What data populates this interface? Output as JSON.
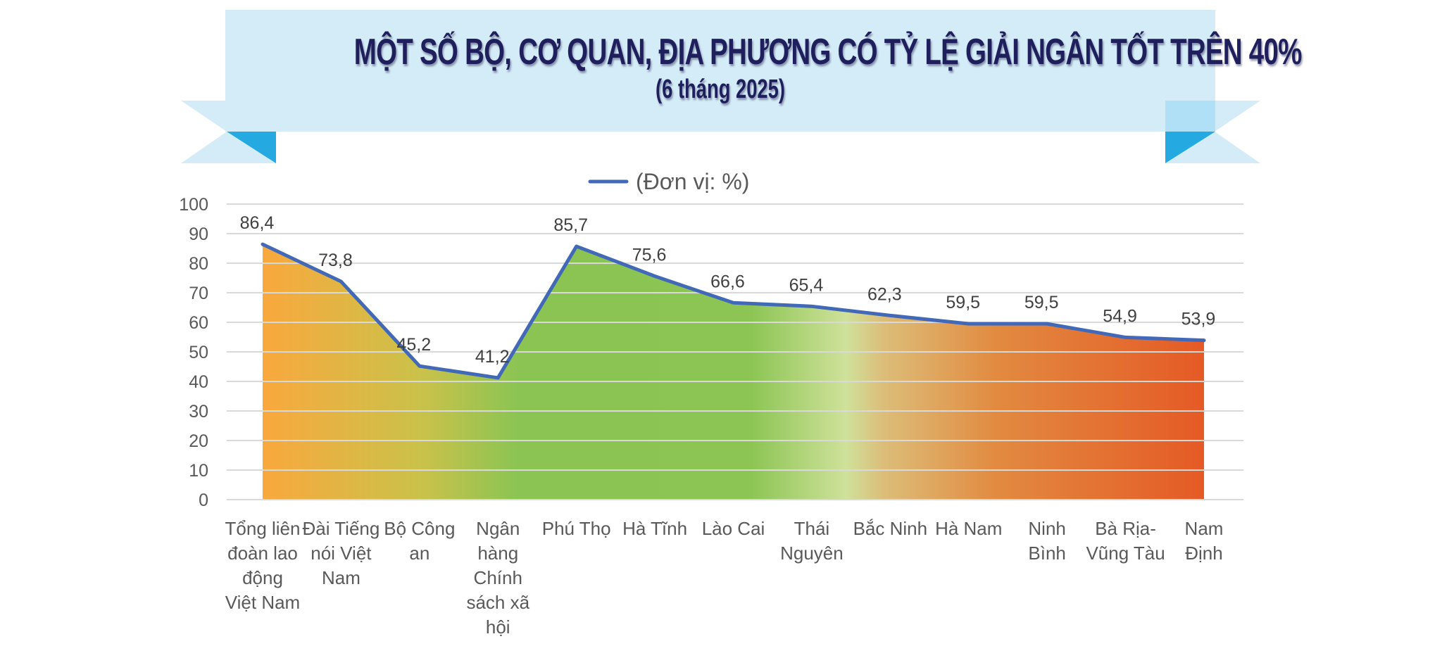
{
  "header": {
    "title": "MỘT SỐ BỘ, CƠ QUAN, ĐỊA PHƯƠNG CÓ TỶ LỆ GIẢI NGÂN TỐT TRÊN 40%",
    "subtitle": "(6 tháng 2025)"
  },
  "colors": {
    "banner_bg": "#d4ecf7",
    "ribbon_light": "#b0e0f6",
    "ribbon_dark": "#25a9e1",
    "title_text": "#1f1f5e",
    "line": "#4169b8",
    "gridline": "#d9d9d9",
    "axis_text": "#595959",
    "gradient_stops": [
      "#f9a83d",
      "#c9c24a",
      "#8cc453",
      "#8cc453",
      "#cfe19a",
      "#e09448",
      "#e55a26"
    ]
  },
  "legend": {
    "label": "(Đơn vị: %)",
    "icon": "line-swatch-icon"
  },
  "chart_data": {
    "type": "area",
    "title": "MỘT SỐ BỘ, CƠ QUAN, ĐỊA PHƯƠNG CÓ TỶ LỆ GIẢI NGÂN TỐT TRÊN 40%",
    "subtitle": "(6 tháng 2025)",
    "xlabel": "",
    "ylabel": "",
    "ylim": [
      0,
      100
    ],
    "yticks": [
      0,
      10,
      20,
      30,
      40,
      50,
      60,
      70,
      80,
      90,
      100
    ],
    "grid": true,
    "legend_position": "top",
    "categories": [
      "Tổng liên đoàn lao động Việt Nam",
      "Đài Tiếng nói Việt Nam",
      "Bộ Công an",
      "Ngân hàng Chính sách xã hội",
      "Phú Thọ",
      "Hà Tĩnh",
      "Lào Cai",
      "Thái Nguyên",
      "Bắc Ninh",
      "Hà Nam",
      "Ninh Bình",
      "Bà Rịa-Vũng Tàu",
      "Nam Định"
    ],
    "category_lines": [
      [
        "Tổng liên",
        "đoàn lao",
        "động",
        "Việt Nam"
      ],
      [
        "Đài Tiếng",
        "nói Việt",
        "Nam"
      ],
      [
        "Bộ Công",
        "an"
      ],
      [
        "Ngân",
        "hàng",
        "Chính",
        "sách xã",
        "hội"
      ],
      [
        "Phú Thọ"
      ],
      [
        "Hà Tĩnh"
      ],
      [
        "Lào Cai"
      ],
      [
        "Thái",
        "Nguyên"
      ],
      [
        "Bắc Ninh"
      ],
      [
        "Hà Nam"
      ],
      [
        "Ninh",
        "Bình"
      ],
      [
        "Bà Rịa-",
        "Vũng Tàu"
      ],
      [
        "Nam",
        "Định"
      ]
    ],
    "series": [
      {
        "name": "(Đơn vị: %)",
        "values": [
          86.4,
          73.8,
          45.2,
          41.2,
          85.7,
          75.6,
          66.6,
          65.4,
          62.3,
          59.5,
          59.5,
          54.9,
          53.9
        ],
        "labels": [
          "86,4",
          "73,8",
          "45,2",
          "41,2",
          "85,7",
          "75,6",
          "66,6",
          "65,4",
          "62,3",
          "59,5",
          "59,5",
          "54,9",
          "53,9"
        ]
      }
    ]
  }
}
